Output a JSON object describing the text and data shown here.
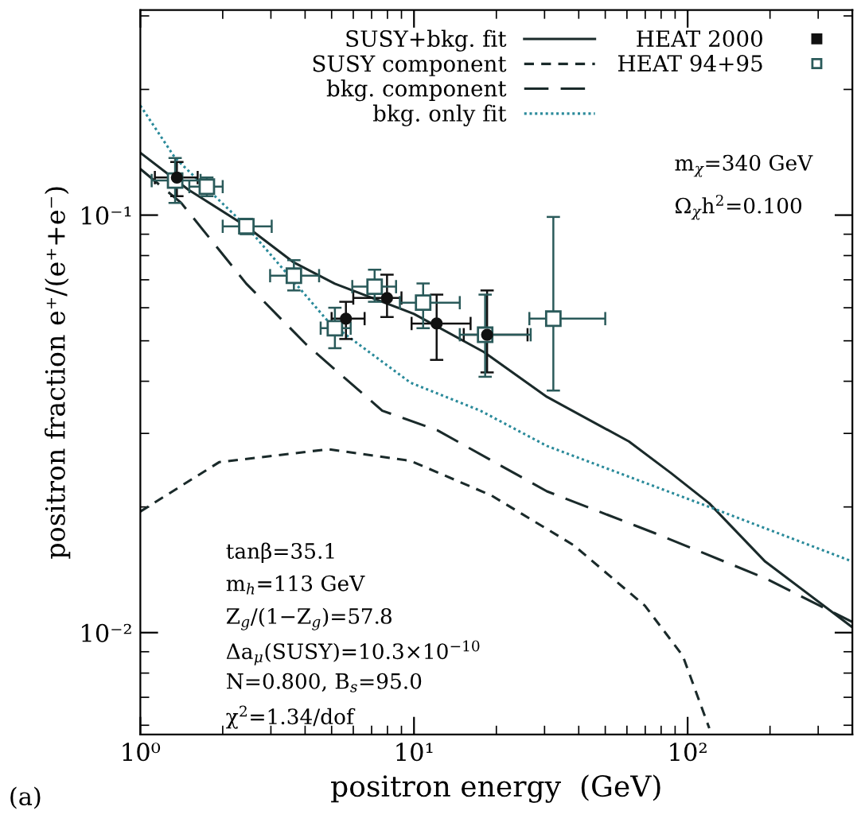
{
  "chart_data": {
    "type": "line",
    "xlabel": "positron energy  (GeV)",
    "ylabel": "positron fraction e⁺/(e⁺+e⁻)",
    "log": "xy",
    "xlim": [
      1,
      400
    ],
    "ylim": [
      0.0057,
      0.31
    ],
    "xticks": [
      {
        "value": 1,
        "label": "10⁰"
      },
      {
        "value": 10,
        "label": "10¹"
      },
      {
        "value": 100,
        "label": "10²"
      }
    ],
    "yticks": [
      {
        "value": 0.01,
        "label": "10⁻²"
      },
      {
        "value": 0.1,
        "label": "10⁻¹"
      }
    ],
    "grid": false,
    "legend": "top",
    "series": [
      {
        "name": "SUSY+bkg. fit",
        "line_style": "solid",
        "color": "#1a2a2a",
        "x": [
          1,
          1.5,
          2.44,
          3.64,
          5.14,
          10,
          18,
          30.6,
          61,
          87,
          120,
          192,
          400
        ],
        "values": [
          0.141,
          0.115,
          0.094,
          0.077,
          0.0685,
          0.058,
          0.047,
          0.0367,
          0.0287,
          0.0241,
          0.0204,
          0.0148,
          0.0103
        ]
      },
      {
        "name": "SUSY component",
        "line_style": "dashed",
        "color": "#1a2a2a",
        "x": [
          1,
          1.94,
          4.87,
          9.7,
          19.2,
          38.3,
          69.8,
          96,
          120
        ],
        "values": [
          0.0195,
          0.0256,
          0.0275,
          0.0258,
          0.0213,
          0.0162,
          0.0116,
          0.0088,
          0.0059
        ]
      },
      {
        "name": "bkg. component",
        "line_style": "longdash",
        "color": "#1a2a2a",
        "x": [
          1,
          1.41,
          2.44,
          4.04,
          7.66,
          12.2,
          30.6,
          76,
          192,
          400
        ],
        "values": [
          0.129,
          0.107,
          0.0685,
          0.049,
          0.034,
          0.0305,
          0.0218,
          0.0173,
          0.0135,
          0.0106
        ]
      },
      {
        "name": "bkg. only fit",
        "line_style": "dotted",
        "color": "#2a8a9a",
        "x": [
          1,
          1.34,
          2.44,
          4.87,
          9.7,
          17.5,
          30.6,
          120,
          400
        ],
        "values": [
          0.183,
          0.137,
          0.094,
          0.0555,
          0.0397,
          0.034,
          0.028,
          0.02,
          0.0148
        ]
      },
      {
        "name": "HEAT 2000",
        "type": "scatter",
        "marker": "circle",
        "color": "#111111",
        "x": [
          1.36,
          5.64,
          7.97,
          12.1,
          18.5
        ],
        "values": [
          0.123,
          0.0565,
          0.0633,
          0.055,
          0.0517
        ],
        "errors": [
          [
            0.111,
            0.134
          ],
          [
            0.0505,
            0.062
          ],
          [
            0.057,
            0.072
          ],
          [
            0.045,
            0.0645
          ],
          [
            0.042,
            0.066
          ]
        ],
        "xerrors": [
          [
            1.13,
            1.62
          ],
          [
            5.0,
            6.6
          ],
          [
            6.0,
            9.0
          ],
          [
            9.8,
            16.1
          ],
          [
            15.2,
            26.0
          ]
        ]
      },
      {
        "name": "HEAT 94+95",
        "type": "scatter",
        "marker": "square",
        "color": "#2a5a5a",
        "x": [
          1.34,
          1.75,
          2.44,
          3.64,
          5.14,
          7.18,
          10.8,
          18.2,
          32.3
        ],
        "values": [
          0.121,
          0.117,
          0.094,
          0.0716,
          0.0536,
          0.0674,
          0.0617,
          0.0517,
          0.0565
        ],
        "errors": [
          [
            0.107,
            0.137
          ],
          [
            0.111,
            0.123
          ],
          [
            0.09,
            0.098
          ],
          [
            0.066,
            0.078
          ],
          [
            0.048,
            0.06
          ],
          [
            0.062,
            0.074
          ],
          [
            0.0536,
            0.0686
          ],
          [
            0.041,
            0.0645
          ],
          [
            0.038,
            0.099
          ]
        ],
        "xerrors": [
          [
            1.1,
            1.66
          ],
          [
            1.51,
            2.0
          ],
          [
            2.0,
            3.02
          ],
          [
            2.98,
            4.5
          ],
          [
            4.56,
            5.87
          ],
          [
            5.95,
            8.6
          ],
          [
            8.88,
            14.7
          ],
          [
            14.7,
            26.7
          ],
          [
            26.4,
            50
          ]
        ]
      }
    ],
    "annotations": [
      "m$_{χ}$=340 GeV",
      "Ω$_{χ}$h$^{2}$=0.100",
      "tanβ=35.1",
      "m$_{h}$=113 GeV",
      "Z$_{g}$/(1−Z$_{g}$)=57.8",
      "Δa$_{μ}$(SUSY)=10.3×10$^{−10}$",
      "N=0.800, B$_{s}$=95.0",
      "χ$^{2}$=1.34/dof",
      "(a)"
    ]
  }
}
